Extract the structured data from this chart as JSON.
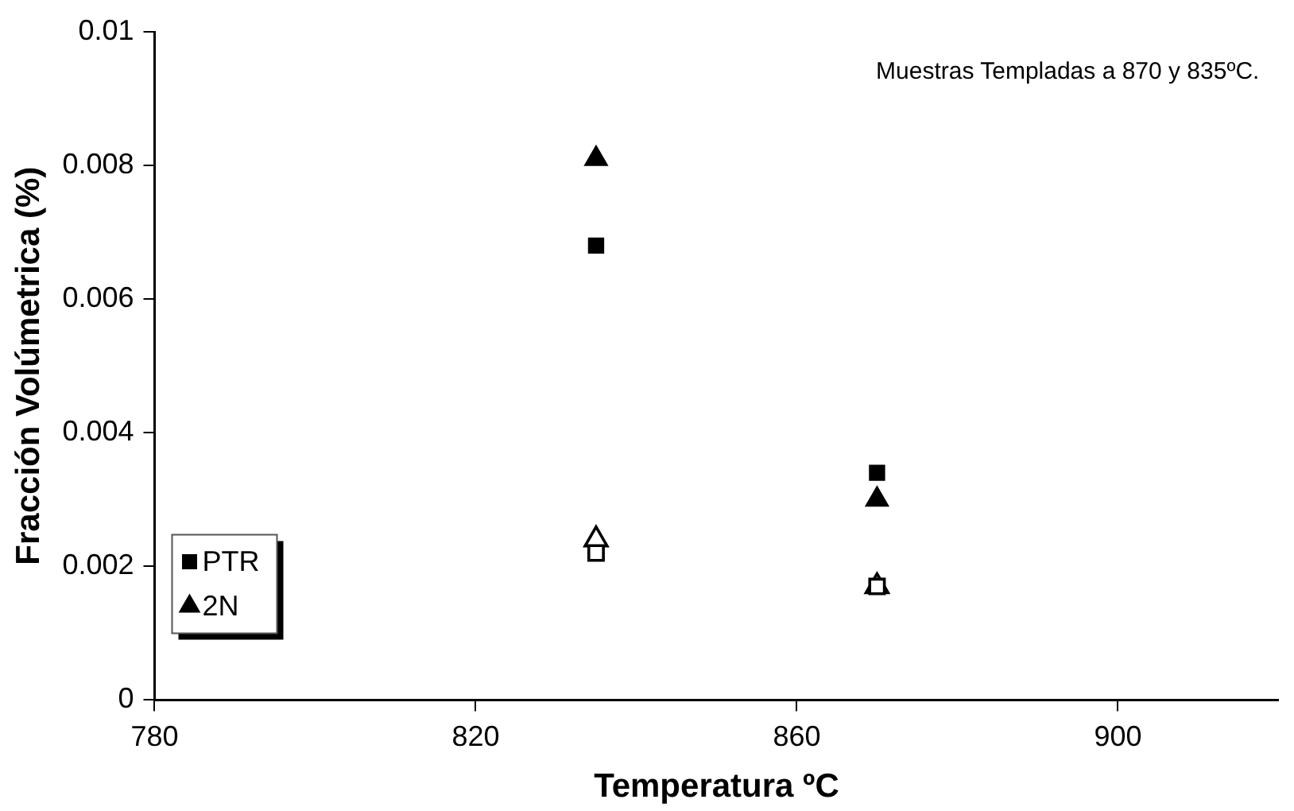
{
  "chart_data": {
    "type": "scatter",
    "xlabel": "Temperatura ºC",
    "ylabel": "Fracción Volúmetrica (%)",
    "annotations": [
      "Muestras Templadas a 870 y 835ºC."
    ],
    "x": [
      835,
      870
    ],
    "series": [
      {
        "name": "PTR",
        "color": "#000000",
        "values": [
          0.0068,
          0.0034
        ],
        "marker": "square"
      },
      {
        "name": "2N",
        "color": "#000000",
        "values": [
          0.0081,
          0.003
        ],
        "marker": "triangle"
      },
      {
        "color": "#000000",
        "values": [
          0.0022,
          0.0017
        ],
        "marker": "square"
      },
      {
        "color": "#000000",
        "values": [
          0.0024,
          0.0017
        ],
        "marker": "triangle"
      }
    ],
    "xlim": [
      780,
      920
    ],
    "xticks": [
      780,
      820,
      860,
      900
    ],
    "ylim": [
      0,
      0.01
    ],
    "yticks": [
      0,
      0.002,
      0.004,
      0.006,
      0.008,
      0.01
    ],
    "grid": false,
    "legend": "bottom left"
  }
}
